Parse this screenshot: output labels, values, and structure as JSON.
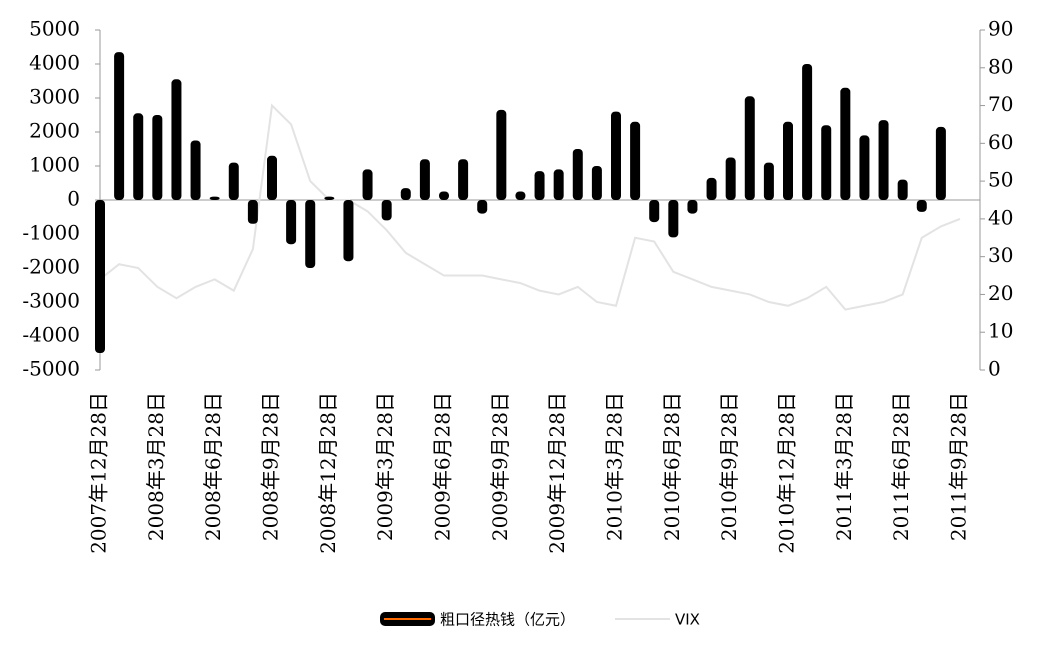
{
  "chart_data": {
    "type": "bar",
    "categories": [
      "2007年12月28日",
      null,
      null,
      "2008年3月28日",
      null,
      null,
      "2008年6月28日",
      null,
      null,
      "2008年9月28日",
      null,
      null,
      "2008年12月28日",
      null,
      null,
      "2009年3月28日",
      null,
      null,
      "2009年6月28日",
      null,
      null,
      "2009年9月28日",
      null,
      null,
      "2009年12月28日",
      null,
      null,
      "2010年3月28日",
      null,
      null,
      "2010年6月28日",
      null,
      null,
      "2010年9月28日",
      null,
      null,
      "2010年12月28日",
      null,
      null,
      "2011年3月28日",
      null,
      null,
      "2011年6月28日",
      null,
      null,
      "2011年9月28日"
    ],
    "series": [
      {
        "name": "粗口径热钱（亿元）",
        "color": "#000000",
        "values": [
          -4500,
          4350,
          2550,
          2500,
          3550,
          1750,
          100,
          1100,
          -700,
          1300,
          -1300,
          -2000,
          100,
          -1800,
          900,
          -600,
          350,
          1200,
          250,
          1200,
          -400,
          2650,
          250,
          850,
          900,
          1500,
          1000,
          2600,
          2300,
          -650,
          -1100,
          -400,
          650,
          1250,
          3050,
          1100,
          2300,
          4000,
          2200,
          3300,
          1900,
          2350,
          600,
          -350,
          2150,
          null
        ]
      },
      {
        "name": "VIX",
        "color": "#e3e3e3",
        "axis": "y2",
        "type": "line",
        "values": [
          24,
          28,
          27,
          22,
          19,
          22,
          24,
          21,
          32,
          70,
          65,
          50,
          45,
          45,
          42,
          37,
          31,
          28,
          25,
          25,
          25,
          24,
          23,
          21,
          20,
          22,
          18,
          17,
          35,
          34,
          26,
          24,
          22,
          21,
          20,
          18,
          17,
          19,
          22,
          16,
          17,
          18,
          20,
          35,
          38,
          40
        ]
      }
    ],
    "ylim": [
      -5000,
      5000
    ],
    "yticks": [
      -5000,
      -4000,
      -3000,
      -2000,
      -1000,
      0,
      1000,
      2000,
      3000,
      4000,
      5000
    ],
    "y2lim": [
      0,
      90
    ],
    "y2ticks": [
      0,
      10,
      20,
      30,
      40,
      50,
      60,
      70,
      80,
      90
    ]
  }
}
